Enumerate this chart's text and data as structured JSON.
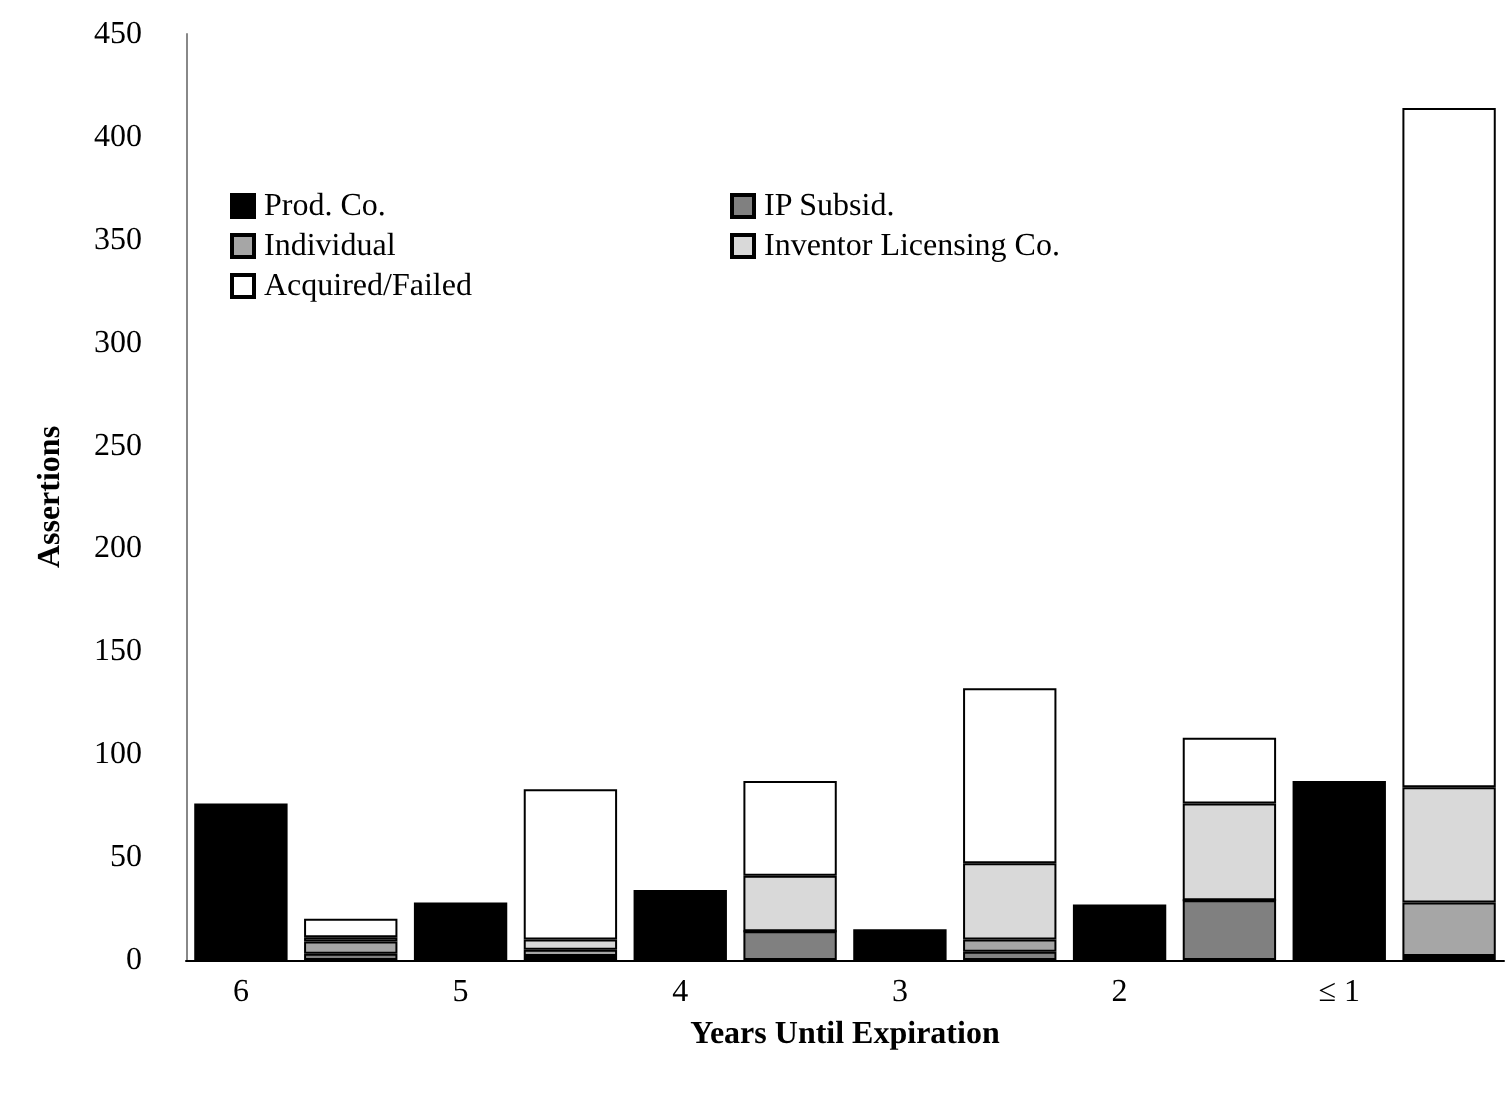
{
  "chart_data": {
    "type": "bar",
    "stacked": true,
    "xlabel": "Years Until Expiration",
    "ylabel": "Assertions",
    "categories": [
      "6",
      null,
      "5",
      null,
      "4",
      null,
      "3",
      null,
      "2",
      null,
      "≤ 1",
      null
    ],
    "series": [
      {
        "name": "Prod. Co.",
        "color": "#000000",
        "values": [
          76,
          null,
          28,
          null,
          34,
          null,
          15,
          null,
          27,
          null,
          87,
          null
        ]
      },
      {
        "name": "IP Subsid.",
        "color": "#808080",
        "values": [
          null,
          3,
          null,
          2,
          null,
          14,
          null,
          4,
          null,
          29,
          null,
          2
        ]
      },
      {
        "name": "Individual",
        "color": "#a6a6a6",
        "values": [
          null,
          6,
          null,
          3,
          null,
          0,
          null,
          6,
          null,
          0,
          null,
          26
        ]
      },
      {
        "name": "Inventor Licensing Co.",
        "color": "#d9d9d9",
        "values": [
          null,
          2,
          null,
          5,
          null,
          27,
          null,
          37,
          null,
          47,
          null,
          56
        ]
      },
      {
        "name": "Acquired/Failed",
        "color": "#ffffff",
        "values": [
          null,
          9,
          null,
          73,
          null,
          46,
          null,
          85,
          null,
          32,
          null,
          330
        ]
      }
    ],
    "ylim": [
      0,
      450
    ],
    "yticks": [
      0,
      50,
      100,
      150,
      200,
      250,
      300,
      350,
      400,
      450
    ],
    "grid": false,
    "legend": "top left"
  }
}
